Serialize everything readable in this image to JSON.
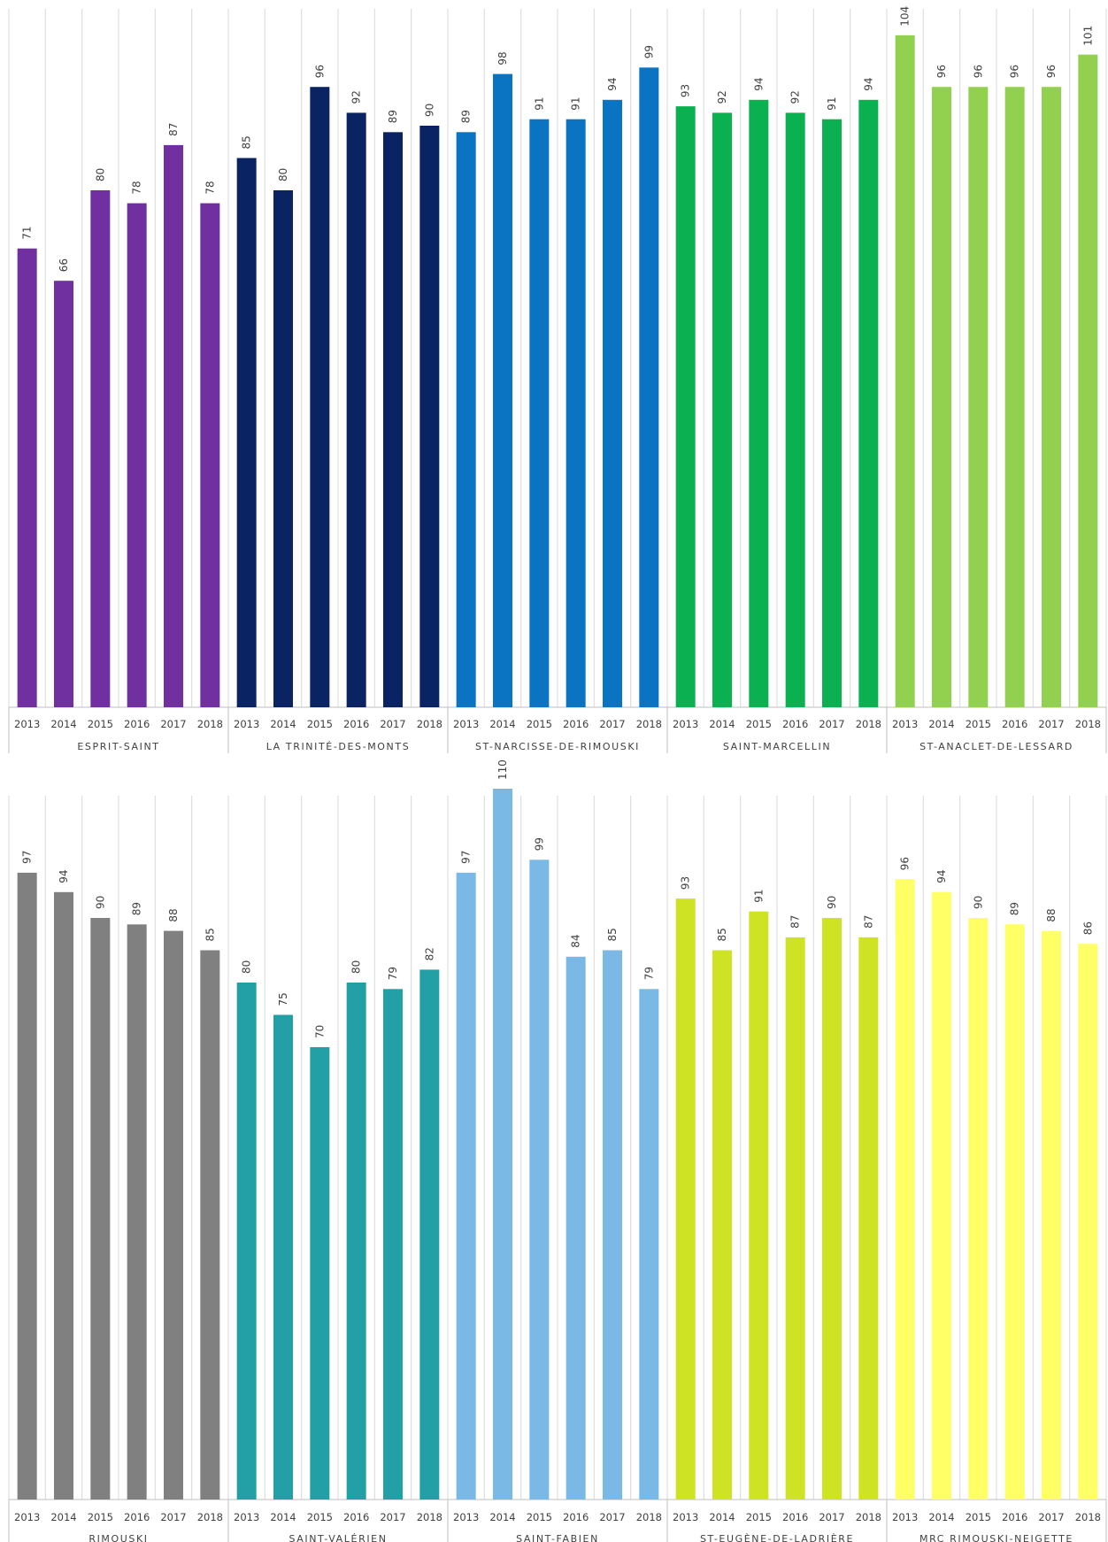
{
  "chart_data": [
    {
      "type": "bar",
      "categories": [
        "2013",
        "2014",
        "2015",
        "2016",
        "2017",
        "2018"
      ],
      "ylim": [
        0,
        120
      ],
      "grid": "vertical",
      "groups": [
        {
          "name": "ESPRIT-SAINT",
          "color": "#7030a0",
          "values": [
            71,
            66,
            80,
            78,
            87,
            78
          ]
        },
        {
          "name": "LA TRINITÉ-DES-MONTS",
          "color": "#0a2463",
          "values": [
            85,
            80,
            96,
            92,
            89,
            90
          ]
        },
        {
          "name": "ST-NARCISSE-DE-RIMOUSKI",
          "color": "#0b74c2",
          "values": [
            89,
            98,
            91,
            91,
            94,
            99
          ]
        },
        {
          "name": "SAINT-MARCELLIN",
          "color": "#0bb150",
          "values": [
            93,
            92,
            94,
            92,
            91,
            94
          ]
        },
        {
          "name": "ST-ANACLET-DE-LESSARD",
          "color": "#92d050",
          "values": [
            104,
            96,
            96,
            96,
            96,
            101
          ]
        }
      ]
    },
    {
      "type": "bar",
      "categories": [
        "2013",
        "2014",
        "2015",
        "2016",
        "2017",
        "2018"
      ],
      "ylim": [
        0,
        120
      ],
      "grid": "vertical",
      "groups": [
        {
          "name": "RIMOUSKI",
          "color": "#808080",
          "values": [
            97,
            94,
            90,
            89,
            88,
            85
          ]
        },
        {
          "name": "SAINT-VALÉRIEN",
          "color": "#23a0a6",
          "values": [
            80,
            75,
            70,
            80,
            79,
            82
          ]
        },
        {
          "name": "SAINT-FABIEN",
          "color": "#7ab8e6",
          "values": [
            97,
            110,
            99,
            84,
            85,
            79
          ]
        },
        {
          "name": "ST-EUGÈNE-DE-LADRIÈRE",
          "color": "#cde323",
          "values": [
            93,
            85,
            91,
            87,
            90,
            87
          ]
        },
        {
          "name": "MRC RIMOUSKI-NEIGETTE",
          "color": "#ffff66",
          "values": [
            96,
            94,
            90,
            89,
            88,
            86
          ]
        }
      ]
    }
  ]
}
